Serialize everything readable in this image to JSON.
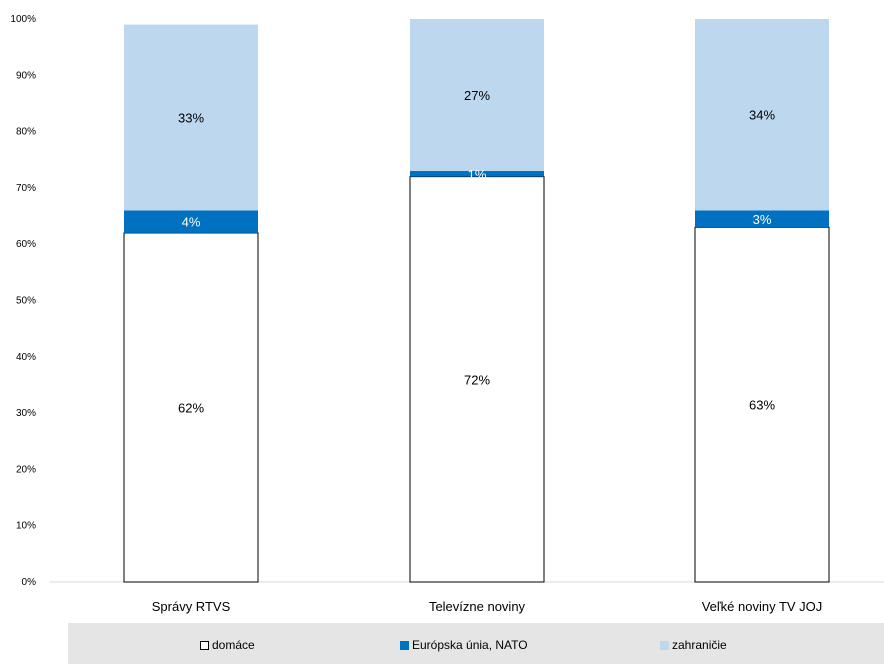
{
  "chart_data": {
    "type": "bar",
    "stacked": true,
    "categories": [
      "Správy RTVS",
      "Televízne noviny",
      "Veľké noviny  TV JOJ"
    ],
    "series": [
      {
        "name": "domáce",
        "values": [
          62,
          72,
          63
        ],
        "labels": [
          "62%",
          "72%",
          "63%"
        ],
        "color": "#ffffff",
        "stroke": "#000000"
      },
      {
        "name": "Európska únia, NATO",
        "values": [
          4,
          1,
          3
        ],
        "labels": [
          "4%",
          "1%",
          "3%"
        ],
        "color": "#0070c0"
      },
      {
        "name": "zahraničie",
        "values": [
          33,
          27,
          34
        ],
        "labels": [
          "33%",
          "27%",
          "34%"
        ],
        "color": "#bdd7ee"
      }
    ],
    "yticks": [
      "0%",
      "10%",
      "20%",
      "30%",
      "40%",
      "50%",
      "60%",
      "70%",
      "80%",
      "90%",
      "100%"
    ],
    "ylim": [
      0,
      100
    ],
    "grid": false,
    "legend_position": "bottom"
  }
}
